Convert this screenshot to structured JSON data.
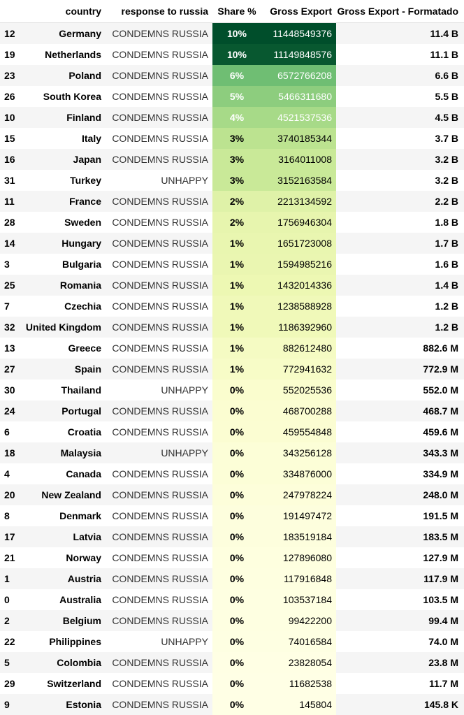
{
  "header": {
    "index": "",
    "country": "country",
    "response": "response to russia",
    "share": "Share %",
    "gross": "Gross Export",
    "formatted": "Gross Export - Formatado"
  },
  "gradient": {
    "low": "#ffffe5",
    "mid_low": "#f7fcb9",
    "mid": "#d9f0a3",
    "mid_high": "#addd8e",
    "high": "#78c679",
    "higher": "#41ab5d",
    "highest": "#005a32"
  },
  "rows": [
    {
      "idx": "12",
      "country": "Germany",
      "response": "CONDEMNS RUSSIA",
      "share": "10%",
      "share_value": 10.4,
      "gross": "11448549376",
      "formatted": "11.4 B"
    },
    {
      "idx": "19",
      "country": "Netherlands",
      "response": "CONDEMNS RUSSIA",
      "share": "10%",
      "share_value": 10.1,
      "gross": "11149848576",
      "formatted": "11.1 B"
    },
    {
      "idx": "23",
      "country": "Poland",
      "response": "CONDEMNS RUSSIA",
      "share": "6%",
      "share_value": 6.0,
      "gross": "6572766208",
      "formatted": "6.6 B"
    },
    {
      "idx": "26",
      "country": "South Korea",
      "response": "CONDEMNS RUSSIA",
      "share": "5%",
      "share_value": 5.0,
      "gross": "5466311680",
      "formatted": "5.5 B"
    },
    {
      "idx": "10",
      "country": "Finland",
      "response": "CONDEMNS RUSSIA",
      "share": "4%",
      "share_value": 4.1,
      "gross": "4521537536",
      "formatted": "4.5 B"
    },
    {
      "idx": "15",
      "country": "Italy",
      "response": "CONDEMNS RUSSIA",
      "share": "3%",
      "share_value": 3.4,
      "gross": "3740185344",
      "formatted": "3.7 B"
    },
    {
      "idx": "16",
      "country": "Japan",
      "response": "CONDEMNS RUSSIA",
      "share": "3%",
      "share_value": 2.9,
      "gross": "3164011008",
      "formatted": "3.2 B"
    },
    {
      "idx": "31",
      "country": "Turkey",
      "response": "UNHAPPY",
      "share": "3%",
      "share_value": 2.9,
      "gross": "3152163584",
      "formatted": "3.2 B"
    },
    {
      "idx": "11",
      "country": "France",
      "response": "CONDEMNS RUSSIA",
      "share": "2%",
      "share_value": 2.0,
      "gross": "2213134592",
      "formatted": "2.2 B"
    },
    {
      "idx": "28",
      "country": "Sweden",
      "response": "CONDEMNS RUSSIA",
      "share": "2%",
      "share_value": 1.6,
      "gross": "1756946304",
      "formatted": "1.8 B"
    },
    {
      "idx": "14",
      "country": "Hungary",
      "response": "CONDEMNS RUSSIA",
      "share": "1%",
      "share_value": 1.5,
      "gross": "1651723008",
      "formatted": "1.7 B"
    },
    {
      "idx": "3",
      "country": "Bulgaria",
      "response": "CONDEMNS RUSSIA",
      "share": "1%",
      "share_value": 1.45,
      "gross": "1594985216",
      "formatted": "1.6 B"
    },
    {
      "idx": "25",
      "country": "Romania",
      "response": "CONDEMNS RUSSIA",
      "share": "1%",
      "share_value": 1.3,
      "gross": "1432014336",
      "formatted": "1.4 B"
    },
    {
      "idx": "7",
      "country": "Czechia",
      "response": "CONDEMNS RUSSIA",
      "share": "1%",
      "share_value": 1.1,
      "gross": "1238588928",
      "formatted": "1.2 B"
    },
    {
      "idx": "32",
      "country": "United Kingdom",
      "response": "CONDEMNS RUSSIA",
      "share": "1%",
      "share_value": 1.1,
      "gross": "1186392960",
      "formatted": "1.2 B"
    },
    {
      "idx": "13",
      "country": "Greece",
      "response": "CONDEMNS RUSSIA",
      "share": "1%",
      "share_value": 0.8,
      "gross": "882612480",
      "formatted": "882.6 M"
    },
    {
      "idx": "27",
      "country": "Spain",
      "response": "CONDEMNS RUSSIA",
      "share": "1%",
      "share_value": 0.7,
      "gross": "772941632",
      "formatted": "772.9 M"
    },
    {
      "idx": "30",
      "country": "Thailand",
      "response": "UNHAPPY",
      "share": "0%",
      "share_value": 0.5,
      "gross": "552025536",
      "formatted": "552.0 M"
    },
    {
      "idx": "24",
      "country": "Portugal",
      "response": "CONDEMNS RUSSIA",
      "share": "0%",
      "share_value": 0.43,
      "gross": "468700288",
      "formatted": "468.7 M"
    },
    {
      "idx": "6",
      "country": "Croatia",
      "response": "CONDEMNS RUSSIA",
      "share": "0%",
      "share_value": 0.42,
      "gross": "459554848",
      "formatted": "459.6 M"
    },
    {
      "idx": "18",
      "country": "Malaysia",
      "response": "UNHAPPY",
      "share": "0%",
      "share_value": 0.31,
      "gross": "343256128",
      "formatted": "343.3 M"
    },
    {
      "idx": "4",
      "country": "Canada",
      "response": "CONDEMNS RUSSIA",
      "share": "0%",
      "share_value": 0.3,
      "gross": "334876000",
      "formatted": "334.9 M"
    },
    {
      "idx": "20",
      "country": "New Zealand",
      "response": "CONDEMNS RUSSIA",
      "share": "0%",
      "share_value": 0.23,
      "gross": "247978224",
      "formatted": "248.0 M"
    },
    {
      "idx": "8",
      "country": "Denmark",
      "response": "CONDEMNS RUSSIA",
      "share": "0%",
      "share_value": 0.17,
      "gross": "191497472",
      "formatted": "191.5 M"
    },
    {
      "idx": "17",
      "country": "Latvia",
      "response": "CONDEMNS RUSSIA",
      "share": "0%",
      "share_value": 0.17,
      "gross": "183519184",
      "formatted": "183.5 M"
    },
    {
      "idx": "21",
      "country": "Norway",
      "response": "CONDEMNS RUSSIA",
      "share": "0%",
      "share_value": 0.12,
      "gross": "127896080",
      "formatted": "127.9 M"
    },
    {
      "idx": "1",
      "country": "Austria",
      "response": "CONDEMNS RUSSIA",
      "share": "0%",
      "share_value": 0.11,
      "gross": "117916848",
      "formatted": "117.9 M"
    },
    {
      "idx": "0",
      "country": "Australia",
      "response": "CONDEMNS RUSSIA",
      "share": "0%",
      "share_value": 0.09,
      "gross": "103537184",
      "formatted": "103.5 M"
    },
    {
      "idx": "2",
      "country": "Belgium",
      "response": "CONDEMNS RUSSIA",
      "share": "0%",
      "share_value": 0.09,
      "gross": "99422200",
      "formatted": "99.4 M"
    },
    {
      "idx": "22",
      "country": "Philippines",
      "response": "UNHAPPY",
      "share": "0%",
      "share_value": 0.07,
      "gross": "74016584",
      "formatted": "74.0 M"
    },
    {
      "idx": "5",
      "country": "Colombia",
      "response": "CONDEMNS RUSSIA",
      "share": "0%",
      "share_value": 0.02,
      "gross": "23828054",
      "formatted": "23.8 M"
    },
    {
      "idx": "29",
      "country": "Switzerland",
      "response": "CONDEMNS RUSSIA",
      "share": "0%",
      "share_value": 0.01,
      "gross": "11682538",
      "formatted": "11.7 M"
    },
    {
      "idx": "9",
      "country": "Estonia",
      "response": "CONDEMNS RUSSIA",
      "share": "0%",
      "share_value": 0.0,
      "gross": "145804",
      "formatted": "145.8 K"
    }
  ]
}
